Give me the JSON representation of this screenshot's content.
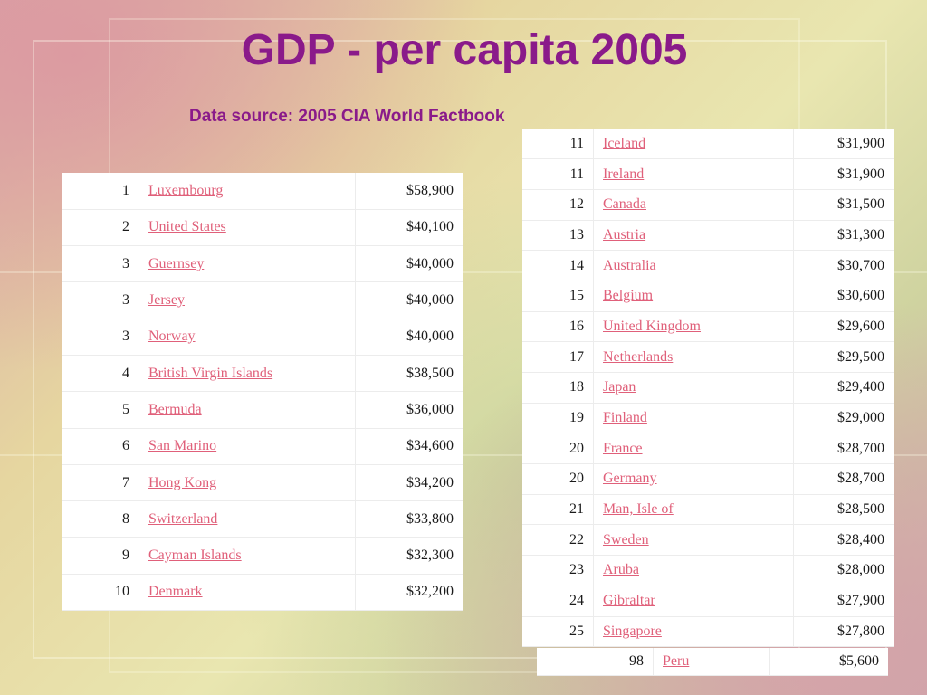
{
  "slide": {
    "title": "GDP - per capita 2005",
    "subtitle": "Data source: 2005 CIA World Factbook"
  },
  "table_left": [
    {
      "rank": "1",
      "country": "Luxembourg",
      "value": "$58,900"
    },
    {
      "rank": "2",
      "country": "United States",
      "value": "$40,100"
    },
    {
      "rank": "3",
      "country": "Guernsey",
      "value": "$40,000"
    },
    {
      "rank": "3",
      "country": "Jersey",
      "value": "$40,000"
    },
    {
      "rank": "3",
      "country": "Norway",
      "value": "$40,000"
    },
    {
      "rank": "4",
      "country": "British Virgin Islands",
      "value": "$38,500"
    },
    {
      "rank": "5",
      "country": "Bermuda",
      "value": "$36,000"
    },
    {
      "rank": "6",
      "country": "San Marino",
      "value": "$34,600"
    },
    {
      "rank": "7",
      "country": "Hong Kong",
      "value": "$34,200"
    },
    {
      "rank": "8",
      "country": "Switzerland",
      "value": "$33,800"
    },
    {
      "rank": "9",
      "country": "Cayman Islands",
      "value": "$32,300"
    },
    {
      "rank": "10",
      "country": "Denmark",
      "value": "$32,200"
    }
  ],
  "table_right": [
    {
      "rank": "11",
      "country": "Iceland",
      "value": "$31,900"
    },
    {
      "rank": "11",
      "country": "Ireland",
      "value": "$31,900"
    },
    {
      "rank": "12",
      "country": "Canada",
      "value": "$31,500"
    },
    {
      "rank": "13",
      "country": "Austria",
      "value": "$31,300"
    },
    {
      "rank": "14",
      "country": "Australia",
      "value": "$30,700"
    },
    {
      "rank": "15",
      "country": "Belgium",
      "value": "$30,600"
    },
    {
      "rank": "16",
      "country": "United Kingdom",
      "value": "$29,600"
    },
    {
      "rank": "17",
      "country": "Netherlands",
      "value": "$29,500"
    },
    {
      "rank": "18",
      "country": "Japan",
      "value": "$29,400"
    },
    {
      "rank": "19",
      "country": "Finland",
      "value": "$29,000"
    },
    {
      "rank": "20",
      "country": "France",
      "value": "$28,700"
    },
    {
      "rank": "20",
      "country": "Germany",
      "value": "$28,700"
    },
    {
      "rank": "21",
      "country": "Man, Isle of",
      "value": "$28,500"
    },
    {
      "rank": "22",
      "country": "Sweden",
      "value": "$28,400"
    },
    {
      "rank": "23",
      "country": "Aruba",
      "value": "$28,000"
    },
    {
      "rank": "24",
      "country": "Gibraltar",
      "value": "$27,900"
    },
    {
      "rank": "25",
      "country": "Singapore",
      "value": "$27,800"
    }
  ],
  "table_extra": [
    {
      "rank": "98",
      "country": "Peru",
      "value": "$5,600"
    }
  ],
  "colors": {
    "title": "#8a1a8a",
    "link": "#e0607a"
  }
}
